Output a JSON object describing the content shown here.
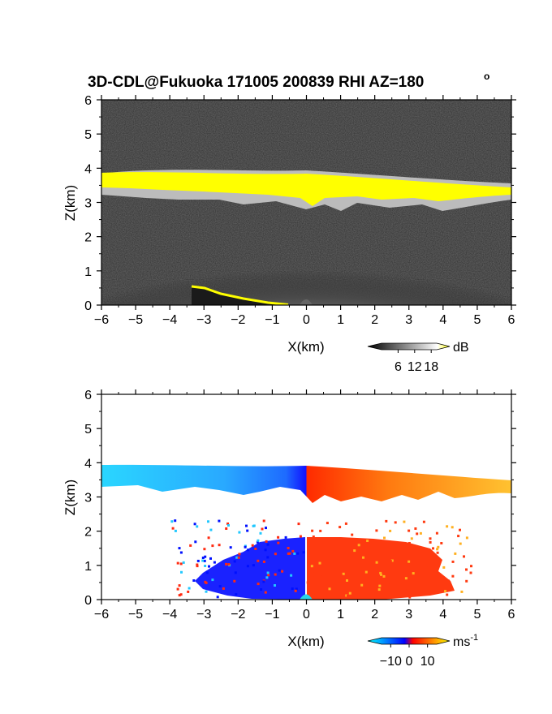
{
  "title": "3D-CDL@Fukuoka 171005 200839 RHI AZ=180",
  "title_degree": "o",
  "chart_data": [
    {
      "type": "heatmap",
      "panel": "backscatter",
      "xlabel": "X(km)",
      "ylabel": "Z(km)",
      "xlim": [
        -6,
        6
      ],
      "ylim": [
        0,
        6
      ],
      "xticks": [
        "-6",
        "-5",
        "-4",
        "-3",
        "-2",
        "-1",
        "0",
        "1",
        "2",
        "3",
        "4",
        "5",
        "6"
      ],
      "yticks": [
        "0",
        "1",
        "2",
        "3",
        "4",
        "5",
        "6"
      ],
      "colorbar": {
        "unit": "dB",
        "ticks": [
          "6",
          "12",
          "18"
        ],
        "range": [
          0,
          20
        ],
        "colors": [
          "#000000",
          "#ffffff",
          "#ffff00"
        ]
      },
      "cloud_layer": {
        "base_km_at_x": [
          [
            -6,
            3.4
          ],
          [
            0,
            3.35
          ],
          [
            6,
            3.25
          ]
        ],
        "top_km_at_x": [
          [
            -6,
            3.75
          ],
          [
            0,
            3.75
          ],
          [
            6,
            3.4
          ]
        ]
      },
      "boundary_layer_top_km": 2.0,
      "ground_echo_from_x": [
        -3.3,
        0.5,
        -0.1,
        0.02
      ]
    },
    {
      "type": "heatmap",
      "panel": "doppler_velocity",
      "xlabel": "X(km)",
      "ylabel": "Z(km)",
      "xlim": [
        -6,
        6
      ],
      "ylim": [
        0,
        6
      ],
      "xticks": [
        "-6",
        "-5",
        "-4",
        "-3",
        "-2",
        "-1",
        "0",
        "1",
        "2",
        "3",
        "4",
        "5",
        "6"
      ],
      "yticks": [
        "0",
        "1",
        "2",
        "3",
        "4",
        "5",
        "6"
      ],
      "colorbar": {
        "unit": "ms",
        "unit_sup": "-1",
        "ticks": [
          "−10",
          "0",
          "10"
        ],
        "range": [
          -15,
          15
        ],
        "colors": [
          "#00ffff",
          "#0000ff",
          "#ff0000",
          "#ffff00"
        ]
      },
      "cloud_velocity": {
        "negative_side_x": [
          -6,
          0
        ],
        "positive_side_x": [
          0,
          6
        ]
      },
      "lower_echo_extent_x": [
        -3.8,
        4.8
      ],
      "lower_echo_top_km": 2.2
    }
  ]
}
